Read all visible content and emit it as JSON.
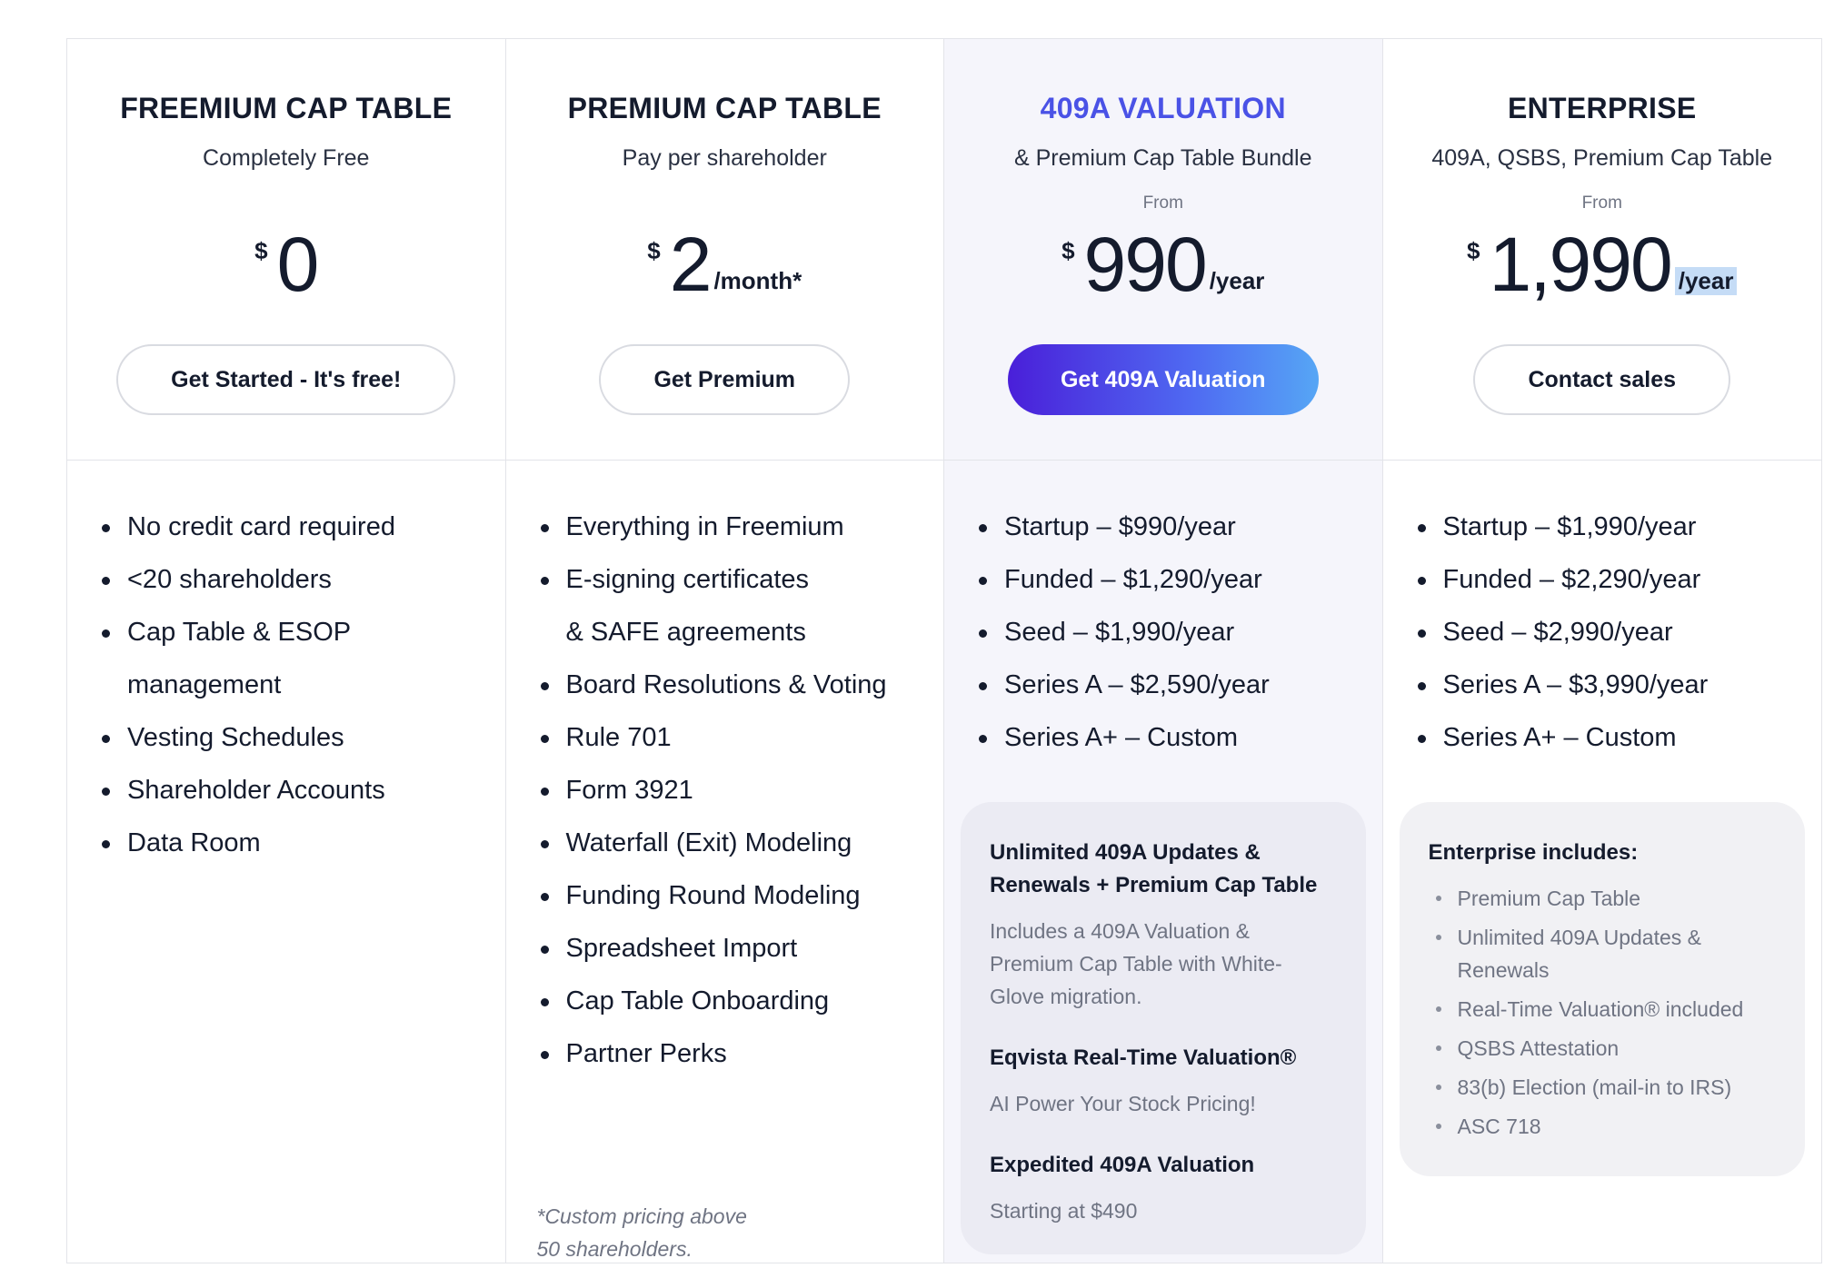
{
  "plans": [
    {
      "name": "FREEMIUM CAP TABLE",
      "subtitle": "Completely Free",
      "from": "",
      "currency": "$",
      "amount": "0",
      "period": "",
      "button": "Get Started - It's free!",
      "features": [
        "No credit card required",
        "<20 shareholders",
        "Cap Table & ESOP",
        "management",
        "Vesting Schedules",
        "Shareholder Accounts",
        "Data Room"
      ]
    },
    {
      "name": "PREMIUM CAP TABLE",
      "subtitle": "Pay per shareholder",
      "from": "",
      "currency": "$",
      "amount": "2",
      "period": "/month*",
      "button": "Get Premium",
      "features": [
        "Everything in Freemium",
        "E-signing certificates",
        "& SAFE agreements",
        "Board Resolutions & Voting",
        "Rule 701",
        "Form 3921",
        "Waterfall (Exit) Modeling",
        "Funding Round Modeling",
        "Spreadsheet Import",
        "Cap Table Onboarding",
        "Partner Perks"
      ],
      "footnote_line1": "*Custom pricing above",
      "footnote_line2": "50 shareholders."
    },
    {
      "name": "409A VALUATION",
      "subtitle": "& Premium Cap Table Bundle",
      "from": "From",
      "currency": "$",
      "amount": "990",
      "period": "/year",
      "button": "Get 409A Valuation",
      "features": [
        "Startup – $990/year",
        "Funded – $1,290/year",
        "Seed – $1,990/year",
        "Series A – $2,590/year",
        "Series A+ – Custom"
      ],
      "box": [
        {
          "title": "Unlimited 409A Updates & Renewals + Premium Cap Table",
          "text": "Includes a 409A Valuation & Premium Cap Table with White-Glove migration."
        },
        {
          "title": "Eqvista Real-Time Valuation®",
          "text": "AI Power Your Stock Pricing!"
        },
        {
          "title": "Expedited 409A Valuation",
          "text": "Starting at $490"
        }
      ]
    },
    {
      "name": "ENTERPRISE",
      "subtitle": "409A, QSBS, Premium Cap Table",
      "from": "From",
      "currency": "$",
      "amount": "1,990",
      "period": "/year",
      "button": "Contact sales",
      "features": [
        "Startup – $1,990/year",
        "Funded – $2,290/year",
        "Seed – $2,990/year",
        "Series A – $3,990/year",
        "Series A+ – Custom"
      ],
      "box_title": "Enterprise includes:",
      "box_items": [
        "Premium Cap Table",
        "Unlimited 409A Updates & Renewals",
        "Real-Time Valuation® included",
        "QSBS Attestation",
        "83(b) Election  (mail-in to IRS)",
        "ASC 718"
      ]
    }
  ]
}
